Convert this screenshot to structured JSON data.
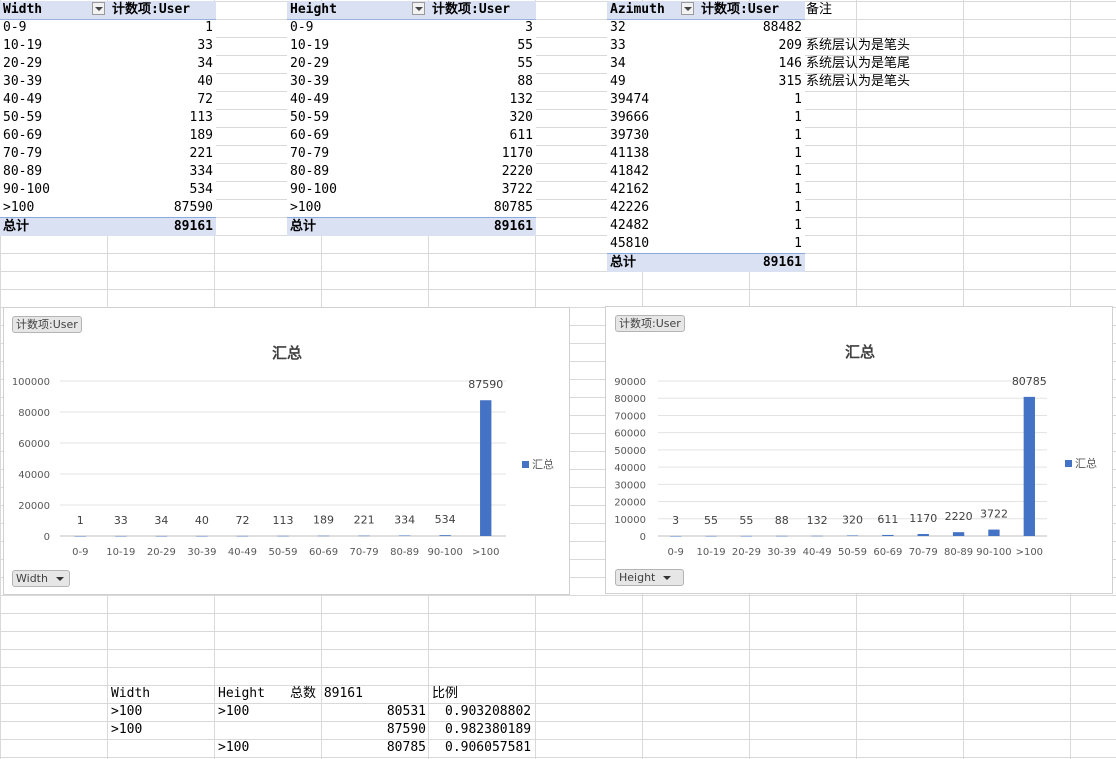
{
  "width_table": {
    "header_field": "Width",
    "header_value": "计数项:User",
    "rows": [
      {
        "label": "0-9",
        "value": "1"
      },
      {
        "label": "10-19",
        "value": "33"
      },
      {
        "label": "20-29",
        "value": "34"
      },
      {
        "label": "30-39",
        "value": "40"
      },
      {
        "label": "40-49",
        "value": "72"
      },
      {
        "label": "50-59",
        "value": "113"
      },
      {
        "label": "60-69",
        "value": "189"
      },
      {
        "label": "70-79",
        "value": "221"
      },
      {
        "label": "80-89",
        "value": "334"
      },
      {
        "label": "90-100",
        "value": "534"
      },
      {
        "label": ">100",
        "value": "87590"
      }
    ],
    "total_label": "总计",
    "total_value": "89161"
  },
  "height_table": {
    "header_field": "Height",
    "header_value": "计数项:User",
    "rows": [
      {
        "label": "0-9",
        "value": "3"
      },
      {
        "label": "10-19",
        "value": "55"
      },
      {
        "label": "20-29",
        "value": "55"
      },
      {
        "label": "30-39",
        "value": "88"
      },
      {
        "label": "40-49",
        "value": "132"
      },
      {
        "label": "50-59",
        "value": "320"
      },
      {
        "label": "60-69",
        "value": "611"
      },
      {
        "label": "70-79",
        "value": "1170"
      },
      {
        "label": "80-89",
        "value": "2220"
      },
      {
        "label": "90-100",
        "value": "3722"
      },
      {
        "label": ">100",
        "value": "80785"
      }
    ],
    "total_label": "总计",
    "total_value": "89161"
  },
  "azimuth_table": {
    "header_field": "Azimuth",
    "header_value": "计数项:User",
    "rows": [
      {
        "label": "32",
        "value": "88482"
      },
      {
        "label": "33",
        "value": "209"
      },
      {
        "label": "34",
        "value": "146"
      },
      {
        "label": "49",
        "value": "315"
      },
      {
        "label": "39474",
        "value": "1"
      },
      {
        "label": "39666",
        "value": "1"
      },
      {
        "label": "39730",
        "value": "1"
      },
      {
        "label": "41138",
        "value": "1"
      },
      {
        "label": "41842",
        "value": "1"
      },
      {
        "label": "42162",
        "value": "1"
      },
      {
        "label": "42226",
        "value": "1"
      },
      {
        "label": "42482",
        "value": "1"
      },
      {
        "label": "45810",
        "value": "1"
      }
    ],
    "total_label": "总计",
    "total_value": "89161"
  },
  "notes": {
    "header": "备注",
    "items": [
      "系统层认为是笔头",
      "系统层认为是笔尾",
      "系统层认为是笔头"
    ]
  },
  "charts": [
    {
      "value_button": "计数项:User",
      "axis_button": "Width",
      "legend": "汇总"
    },
    {
      "value_button": "计数项:User",
      "axis_button": "Height",
      "legend": "汇总"
    }
  ],
  "chart_data": [
    {
      "type": "bar",
      "title": "汇总",
      "categories": [
        "0-9",
        "10-19",
        "20-29",
        "30-39",
        "40-49",
        "50-59",
        "60-69",
        "70-79",
        "80-89",
        "90-100",
        ">100"
      ],
      "series": [
        {
          "name": "汇总",
          "values": [
            1,
            33,
            34,
            40,
            72,
            113,
            189,
            221,
            334,
            534,
            87590
          ]
        }
      ],
      "ylim": [
        0,
        100000
      ],
      "yticks": [
        0,
        20000,
        40000,
        60000,
        80000,
        100000
      ],
      "grid": true,
      "legend_position": "right",
      "color": "#4472c4"
    },
    {
      "type": "bar",
      "title": "汇总",
      "categories": [
        "0-9",
        "10-19",
        "20-29",
        "30-39",
        "40-49",
        "50-59",
        "60-69",
        "70-79",
        "80-89",
        "90-100",
        ">100"
      ],
      "series": [
        {
          "name": "汇总",
          "values": [
            3,
            55,
            55,
            88,
            132,
            320,
            611,
            1170,
            2220,
            3722,
            80785
          ]
        }
      ],
      "ylim": [
        0,
        90000
      ],
      "yticks": [
        0,
        10000,
        20000,
        30000,
        40000,
        50000,
        60000,
        70000,
        80000,
        90000
      ],
      "grid": true,
      "legend_position": "right",
      "color": "#4472c4"
    }
  ],
  "summary": {
    "col_width": "Width",
    "col_height": "Height",
    "col_total": "总数 89161",
    "col_ratio": "比例",
    "rows": [
      {
        "width": ">100",
        "height": ">100",
        "count": "80531",
        "ratio": "0.903208802"
      },
      {
        "width": ">100",
        "height": "",
        "count": "87590",
        "ratio": "0.982380189"
      },
      {
        "width": "",
        "height": ">100",
        "count": "80785",
        "ratio": "0.906057581"
      }
    ]
  }
}
